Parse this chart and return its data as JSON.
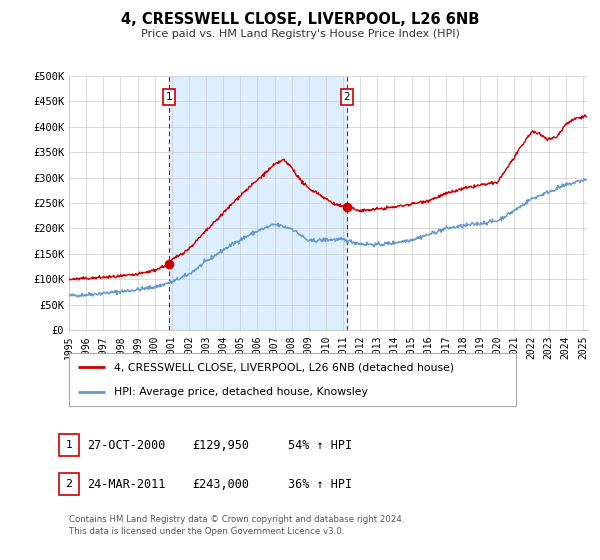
{
  "title": "4, CRESSWELL CLOSE, LIVERPOOL, L26 6NB",
  "subtitle": "Price paid vs. HM Land Registry's House Price Index (HPI)",
  "red_label": "4, CRESSWELL CLOSE, LIVERPOOL, L26 6NB (detached house)",
  "blue_label": "HPI: Average price, detached house, Knowsley",
  "red_color": "#cc0000",
  "blue_color": "#6699cc",
  "shade_color": "#ddeeff",
  "grid_color": "#cccccc",
  "bg_color": "#ffffff",
  "ylim": [
    0,
    500000
  ],
  "yticks": [
    0,
    50000,
    100000,
    150000,
    200000,
    250000,
    300000,
    350000,
    400000,
    450000,
    500000
  ],
  "ytick_labels": [
    "£0",
    "£50K",
    "£100K",
    "£150K",
    "£200K",
    "£250K",
    "£300K",
    "£350K",
    "£400K",
    "£450K",
    "£500K"
  ],
  "sale1_date": 2000.82,
  "sale1_price": 129950,
  "sale1_label": "1",
  "sale1_text": "27-OCT-2000",
  "sale1_price_text": "£129,950",
  "sale1_hpi_text": "54% ↑ HPI",
  "sale2_date": 2011.23,
  "sale2_price": 243000,
  "sale2_label": "2",
  "sale2_text": "24-MAR-2011",
  "sale2_price_text": "£243,000",
  "sale2_hpi_text": "36% ↑ HPI",
  "footer1": "Contains HM Land Registry data © Crown copyright and database right 2024.",
  "footer2": "This data is licensed under the Open Government Licence v3.0.",
  "xlim_start": 1995.0,
  "xlim_end": 2025.3
}
